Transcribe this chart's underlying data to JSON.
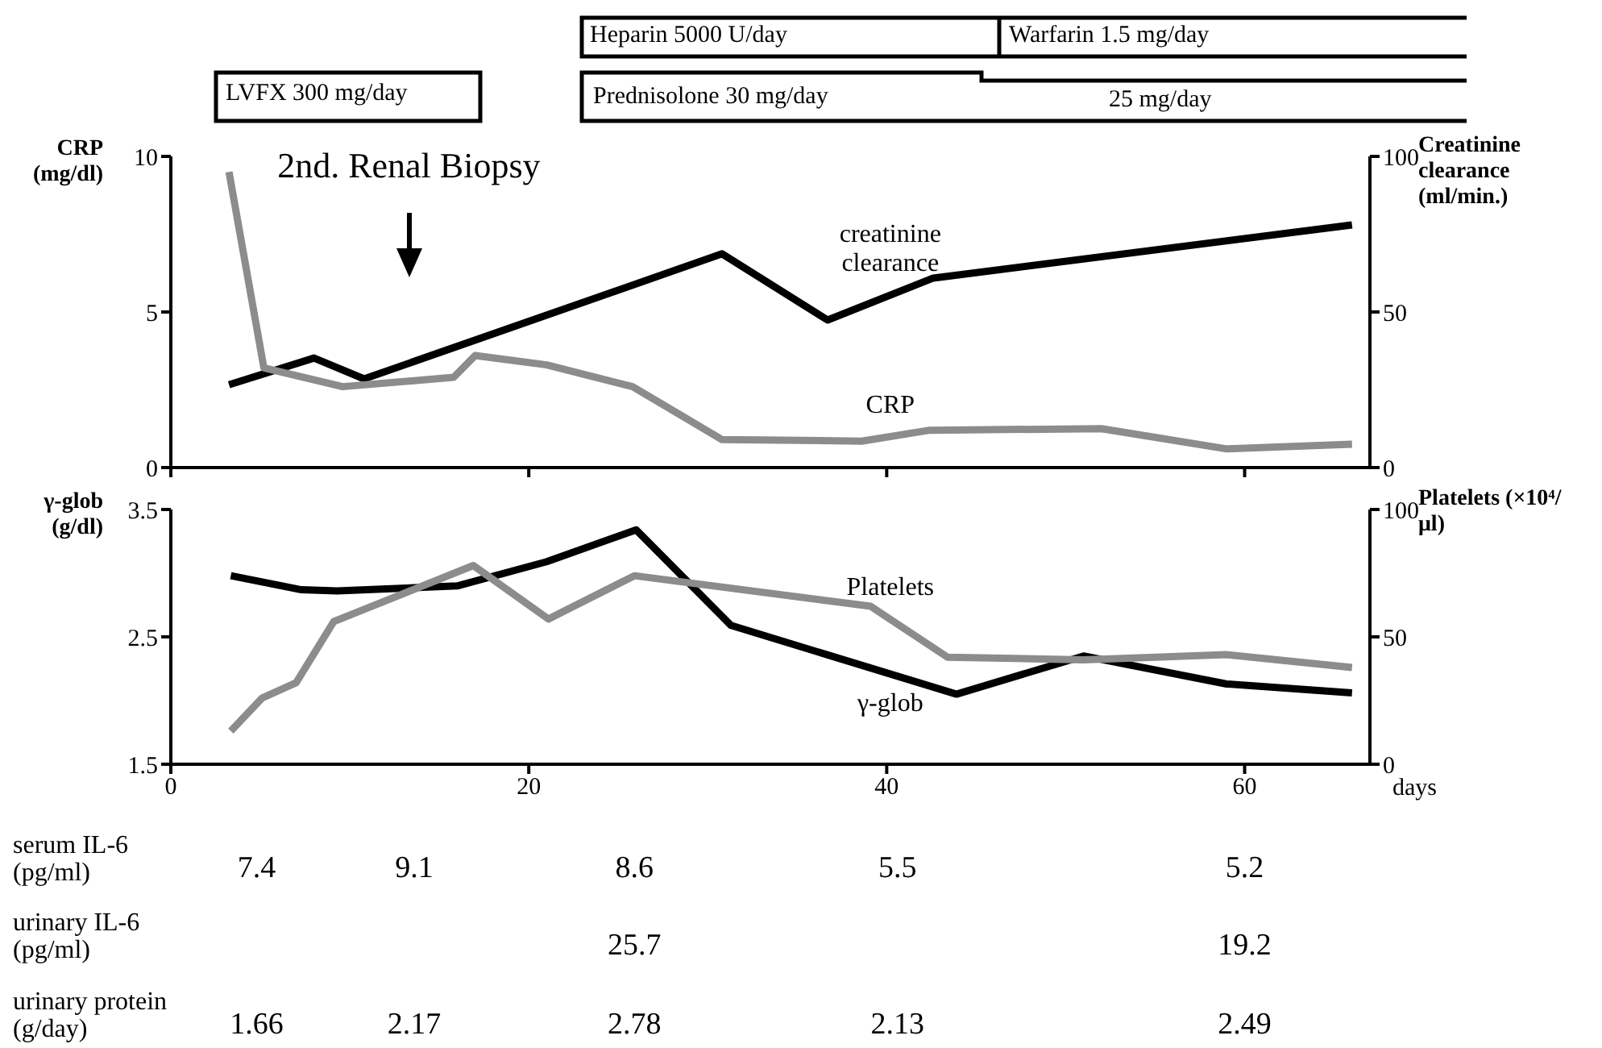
{
  "chart_data": [
    {
      "type": "line",
      "tick_labels": "y",
      "xlim": [
        0,
        67
      ],
      "xticks": [
        {
          "value": 0,
          "label": null
        },
        {
          "value": 20,
          "label": null
        },
        {
          "value": 40,
          "label": null
        },
        {
          "value": 60,
          "label": null
        }
      ],
      "ylim": [
        0,
        10
      ],
      "yticks": [
        0,
        5,
        10
      ],
      "y2lim": [
        0,
        100
      ],
      "y2ticks": [
        0,
        50,
        100
      ],
      "ylabel": "CRP (mg/dl)",
      "y2label": "Creatinine clearance (ml/min.)",
      "annotations": [
        "LVFX 300 mg/day",
        "Heparin 5000 U/day",
        "Warfarin 1.5 mg/day",
        "Prednisolone 30 mg/day",
        "25 mg/day",
        "2nd. Renal Biopsy"
      ],
      "series": [
        {
          "name": "creatinine clearance",
          "color": "#000000",
          "axis": "y2",
          "x": [
            3.25,
            8,
            10.8,
            30.8,
            36.7,
            42.6,
            66
          ],
          "values": [
            26.6,
            35.2,
            28.5,
            68.7,
            47.4,
            60.9,
            78
          ]
        },
        {
          "name": "CRP",
          "color": "#8c8c8c",
          "axis": "y",
          "x": [
            3.25,
            5.2,
            9.6,
            15.8,
            17,
            21,
            25.8,
            30.8,
            38.6,
            42.4,
            52,
            59,
            66
          ],
          "values": [
            9.5,
            3.2,
            2.6,
            2.9,
            3.6,
            3.3,
            2.6,
            0.9,
            0.85,
            1.2,
            1.25,
            0.6,
            0.75
          ]
        }
      ]
    },
    {
      "type": "line",
      "xlim": [
        0,
        67
      ],
      "xticks": [
        0,
        20,
        40,
        60
      ],
      "xlabel": "days",
      "ylim": [
        1.5,
        3.5
      ],
      "yticks": [
        1.5,
        2.5,
        3.5
      ],
      "y2lim": [
        0,
        100
      ],
      "y2ticks": [
        0,
        50,
        100
      ],
      "ylabel": "γ-glob (g/dl)",
      "y2label": "Platelets (×10⁴/μl)",
      "annotations": [
        "serum IL-6 (pg/ml)",
        "7.4",
        "9.1",
        "8.6",
        "5.5",
        "5.2",
        "urinary IL-6 (pg/ml)",
        "25.7",
        "19.2",
        "urinary protein (g/day)",
        "1.66",
        "2.17",
        "2.78",
        "2.13",
        "2.49"
      ],
      "series": [
        {
          "name": "γ-glob",
          "color": "#000000",
          "axis": "y",
          "x": [
            3.35,
            7.3,
            9.3,
            16,
            21,
            26,
            31.3,
            43.9,
            51,
            59,
            66
          ],
          "values": [
            2.98,
            2.87,
            2.86,
            2.9,
            3.09,
            3.34,
            2.59,
            2.05,
            2.35,
            2.13,
            2.06
          ]
        },
        {
          "name": "Platelets",
          "color": "#8c8c8c",
          "axis": "y2",
          "x": [
            3.35,
            5.1,
            7,
            9.1,
            16.9,
            21.1,
            25.9,
            39.1,
            43.4,
            51,
            59,
            66
          ],
          "values": [
            13,
            26,
            32,
            56,
            78,
            57,
            74,
            62,
            42,
            41,
            43,
            38
          ]
        }
      ]
    }
  ]
}
